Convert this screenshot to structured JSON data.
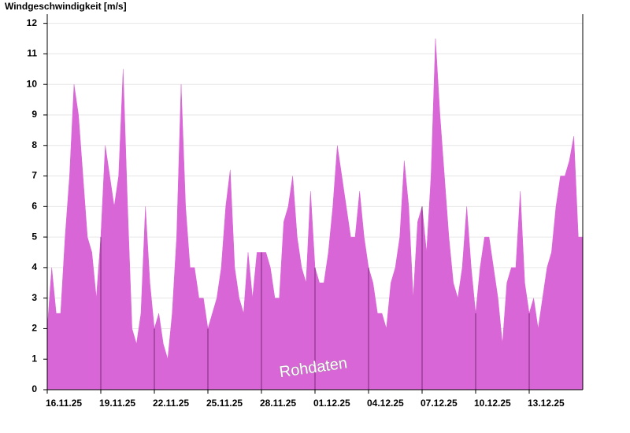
{
  "chart_data": {
    "type": "area",
    "title": "Windgeschwindigkeit [m/s]",
    "annotation": "Rohdaten",
    "color": "#d966d6",
    "categories": [
      "16.11.25",
      null,
      null,
      null,
      null,
      null,
      null,
      null,
      null,
      null,
      null,
      null,
      "19.11.25",
      null,
      null,
      null,
      null,
      null,
      null,
      null,
      null,
      null,
      null,
      null,
      "22.11.25",
      null,
      null,
      null,
      null,
      null,
      null,
      null,
      null,
      null,
      null,
      null,
      "25.11.25",
      null,
      null,
      null,
      null,
      null,
      null,
      null,
      null,
      null,
      null,
      null,
      "28.11.25",
      null,
      null,
      null,
      null,
      null,
      null,
      null,
      null,
      null,
      null,
      null,
      "01.12.25",
      null,
      null,
      null,
      null,
      null,
      null,
      null,
      null,
      null,
      null,
      null,
      "04.12.25",
      null,
      null,
      null,
      null,
      null,
      null,
      null,
      null,
      null,
      null,
      null,
      "07.12.25",
      null,
      null,
      null,
      null,
      null,
      null,
      null,
      null,
      null,
      null,
      null,
      "10.12.25",
      null,
      null,
      null,
      null,
      null,
      null,
      null,
      null,
      null,
      null,
      null,
      "13.12.25",
      null,
      null,
      null,
      null,
      null,
      null,
      null,
      null,
      null,
      null,
      null
    ],
    "values": [
      2,
      4,
      2.5,
      2.5,
      5,
      7,
      10,
      9,
      7,
      5,
      4.5,
      3,
      5,
      8,
      7,
      6,
      7,
      10.5,
      6,
      2,
      1.5,
      2.5,
      6,
      3.5,
      2,
      2.5,
      1.5,
      1,
      2.5,
      5,
      10,
      6,
      4,
      4,
      3,
      3,
      2,
      2.5,
      3,
      4,
      6,
      7.2,
      4,
      3,
      2.5,
      4.5,
      3,
      4.5,
      4.5,
      4.5,
      4,
      3,
      3,
      5.5,
      6,
      7,
      5,
      4,
      3.5,
      6.5,
      4,
      3.5,
      3.5,
      4.5,
      6,
      8,
      7,
      6,
      5,
      5,
      6.5,
      5,
      4,
      3.5,
      2.5,
      2.5,
      2,
      3.5,
      4,
      5,
      7.5,
      6,
      3,
      5.5,
      6,
      4.5,
      7,
      11.5,
      9,
      7,
      5,
      3.5,
      3,
      4,
      6,
      4,
      2.5,
      4,
      5,
      5,
      4,
      3,
      1.5,
      3.5,
      4,
      4,
      6.5,
      3.5,
      2.5,
      3,
      2,
      3,
      4,
      4.5,
      6,
      7,
      7,
      7.5,
      8.3,
      5
    ],
    "ylim": [
      0,
      12.3
    ],
    "yticks": [
      0,
      1,
      2,
      3,
      4,
      5,
      6,
      7,
      8,
      9,
      10,
      11,
      12
    ],
    "grid": true
  }
}
